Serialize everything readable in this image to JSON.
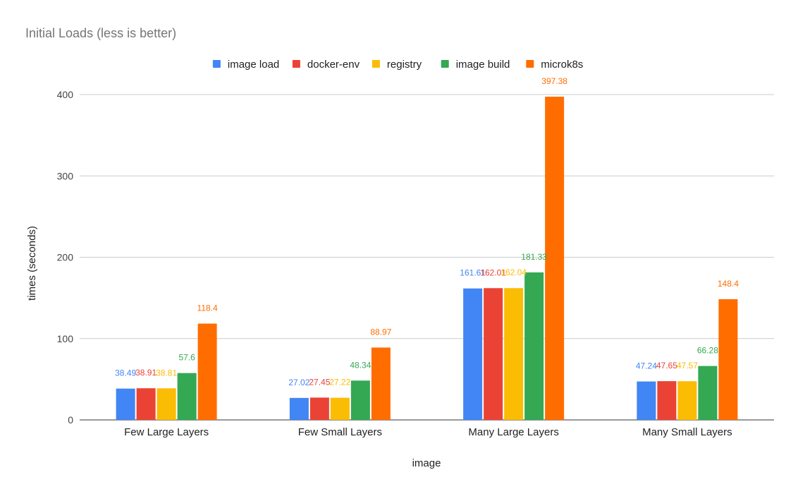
{
  "chart_data": {
    "type": "bar",
    "title": "Initial Loads (less is better)",
    "xlabel": "image",
    "ylabel": "times (seconds)",
    "categories": [
      "Few Large Layers",
      "Few Small Layers",
      "Many Large Layers",
      "Many Small Layers"
    ],
    "ylim": [
      0,
      400
    ],
    "yticks": [
      0,
      100,
      200,
      300,
      400
    ],
    "grid": true,
    "legend_position": "top",
    "series": [
      {
        "name": "image load",
        "color": "#4285F4",
        "values": [
          38.49,
          27.02,
          161.61,
          47.24
        ]
      },
      {
        "name": "docker-env",
        "color": "#EA4335",
        "values": [
          38.91,
          27.45,
          162.01,
          47.65
        ]
      },
      {
        "name": "registry",
        "color": "#FBBC04",
        "values": [
          38.81,
          27.22,
          162.04,
          47.57
        ]
      },
      {
        "name": "image build",
        "color": "#34A853",
        "values": [
          57.6,
          48.34,
          181.33,
          66.28
        ]
      },
      {
        "name": "microk8s",
        "color": "#FF6D01",
        "values": [
          118.4,
          88.97,
          397.38,
          148.4
        ]
      }
    ]
  }
}
